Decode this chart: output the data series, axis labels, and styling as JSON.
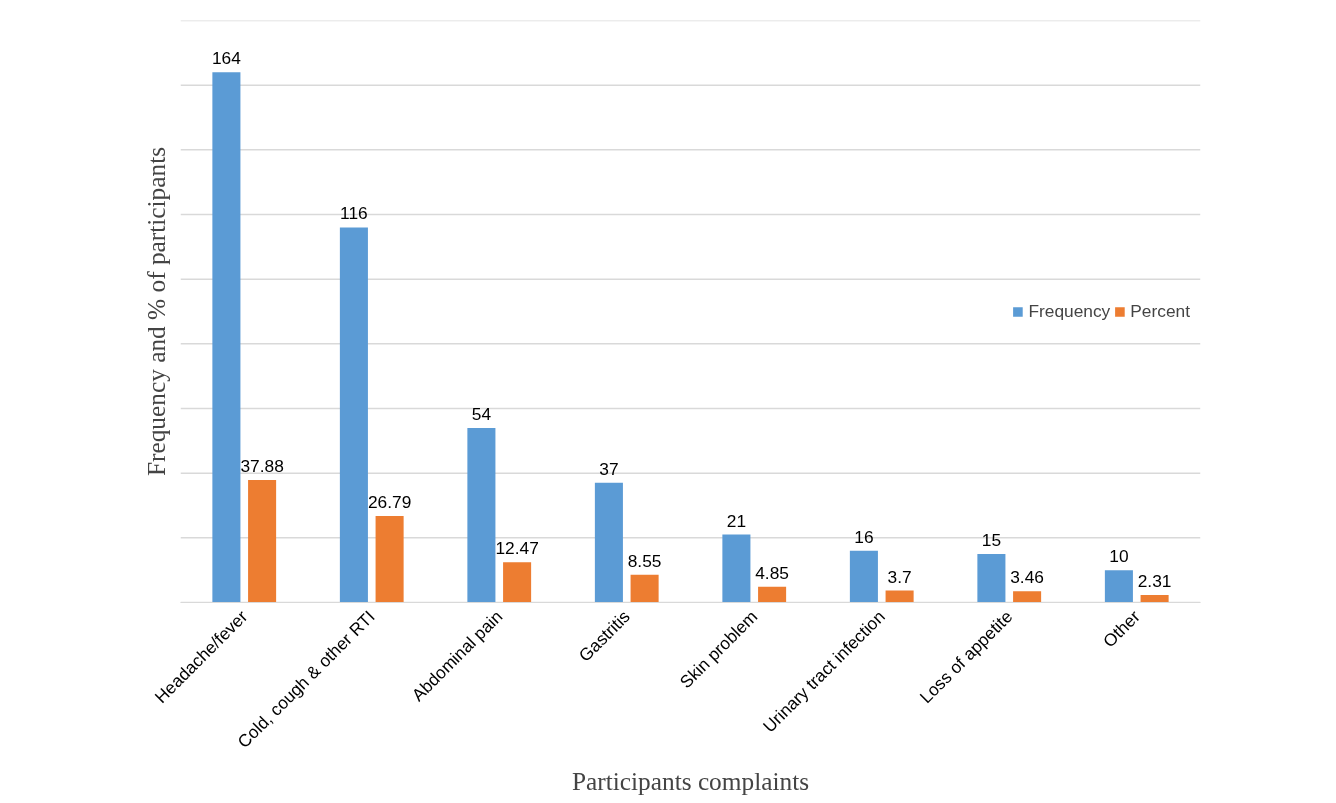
{
  "chart_data": {
    "type": "bar",
    "xlabel": "Participants complaints",
    "ylabel": "Frequency and % of participants",
    "categories": [
      "Headache/fever",
      "Cold, cough & other RTI",
      "Abdominal pain",
      "Gastritis",
      "Skin problem",
      "Urinary tract infection",
      "Loss of appetite",
      "Other"
    ],
    "series": [
      {
        "name": "Frequency",
        "color": "#5b9bd5",
        "values": [
          164,
          116,
          54,
          37,
          21,
          16,
          15,
          10
        ]
      },
      {
        "name": "Percent",
        "color": "#ed7d31",
        "values": [
          37.88,
          26.79,
          12.47,
          8.55,
          4.85,
          3.7,
          3.46,
          2.31
        ]
      }
    ],
    "ylim": [
      0,
      180
    ],
    "yticks": [
      {
        "value": 0,
        "label": null
      },
      {
        "value": 20,
        "label": null
      },
      {
        "value": 40,
        "label": null
      },
      {
        "value": 60,
        "label": null
      },
      {
        "value": 80,
        "label": null
      },
      {
        "value": 100,
        "label": null
      },
      {
        "value": 120,
        "label": null
      },
      {
        "value": 140,
        "label": null
      },
      {
        "value": 160,
        "label": null
      },
      {
        "value": 180,
        "label": null
      }
    ],
    "tick_labels": "x",
    "grid": "y",
    "legend": "right",
    "data_labels": true
  }
}
